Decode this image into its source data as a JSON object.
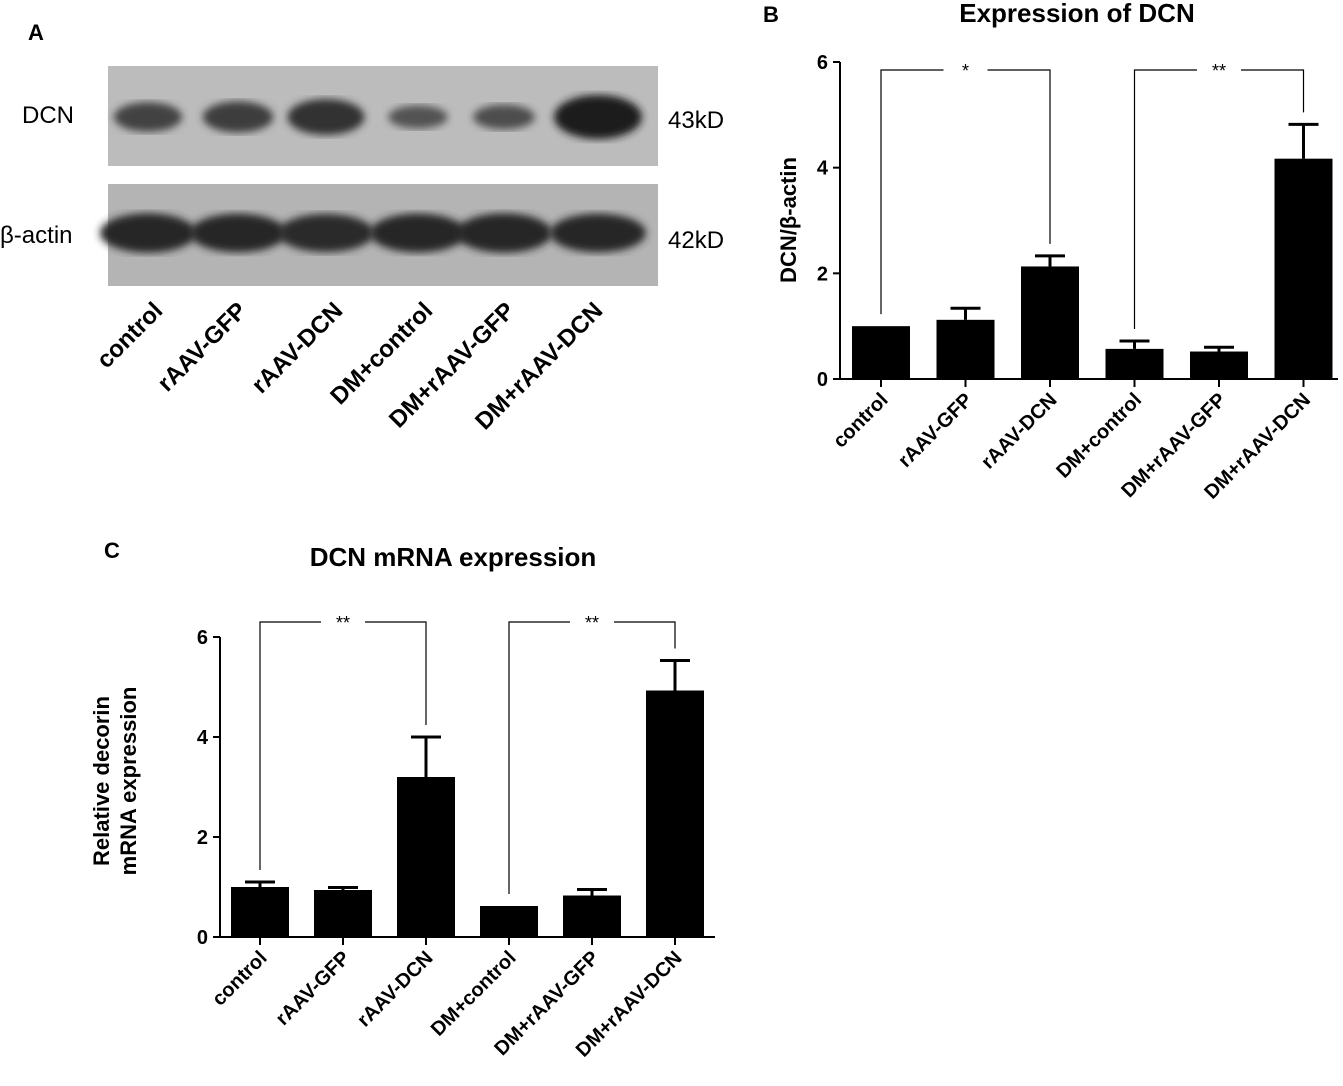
{
  "panel_letters": {
    "a": "A",
    "b": "B",
    "c": "C"
  },
  "blot": {
    "rows": [
      {
        "label": "DCN",
        "size": "43kD",
        "intensities": [
          0.55,
          0.6,
          0.75,
          0.35,
          0.4,
          1.0
        ]
      },
      {
        "label": "β-actin",
        "size": "42kD",
        "intensities": [
          0.95,
          0.9,
          0.85,
          0.92,
          0.95,
          0.9
        ]
      }
    ],
    "lanes": [
      "control",
      "rAAV-GFP",
      "rAAV-DCN",
      "DM+control",
      "DM+rAAV-GFP",
      "DM+rAAV-DCN"
    ]
  },
  "chart_data": [
    {
      "type": "bar",
      "title": "Expression of DCN",
      "ylabel": "DCN/β-actin",
      "xlabel": "",
      "categories": [
        "control",
        "rAAV-GFP",
        "rAAV-DCN",
        "DM+control",
        "DM+rAAV-GFP",
        "DM+rAAV-DCN"
      ],
      "values": [
        1.0,
        1.12,
        2.13,
        0.57,
        0.52,
        4.17
      ],
      "errors": [
        0.0,
        0.22,
        0.2,
        0.15,
        0.08,
        0.65
      ],
      "ylim": [
        0,
        6
      ],
      "yticks": [
        0,
        2,
        4,
        6
      ],
      "significance": [
        {
          "from": 0,
          "to": 2,
          "label": "*"
        },
        {
          "from": 3,
          "to": 5,
          "label": "**"
        }
      ],
      "bar_color": "#000000",
      "grid": false
    },
    {
      "type": "bar",
      "title": "DCN mRNA expression",
      "ylabel": [
        "Relative decorin",
        "mRNA expression"
      ],
      "xlabel": "",
      "categories": [
        "control",
        "rAAV-GFP",
        "rAAV-DCN",
        "DM+control",
        "DM+rAAV-GFP",
        "DM+rAAV-DCN"
      ],
      "values": [
        1.0,
        0.94,
        3.2,
        0.62,
        0.83,
        4.93
      ],
      "errors": [
        0.1,
        0.05,
        0.8,
        0.0,
        0.12,
        0.6
      ],
      "ylim": [
        0,
        6
      ],
      "yticks": [
        0,
        2,
        4,
        6
      ],
      "significance": [
        {
          "from": 0,
          "to": 2,
          "label": "**"
        },
        {
          "from": 3,
          "to": 5,
          "label": "**"
        }
      ],
      "bar_color": "#000000",
      "grid": false
    }
  ]
}
